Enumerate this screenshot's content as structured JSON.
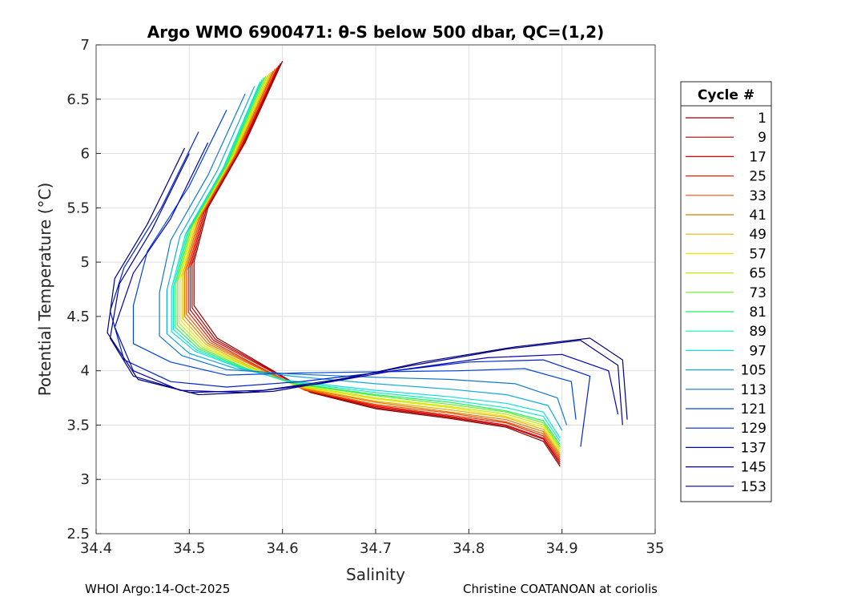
{
  "chart_data": {
    "type": "line",
    "title": "Argo WMO 6900471: θ-S below 500 dbar,  QC=(1,2)",
    "xlabel": "Salinity",
    "ylabel": "Potential Temperature (°C)",
    "xlim": [
      34.4,
      35.0
    ],
    "ylim": [
      2.5,
      7.0
    ],
    "xticks": [
      "34.4",
      "34.5",
      "34.6",
      "34.7",
      "34.8",
      "34.9",
      "35"
    ],
    "yticks": [
      "2.5",
      "3",
      "3.5",
      "4",
      "4.5",
      "5",
      "5.5",
      "6",
      "6.5",
      "7"
    ],
    "grid": true,
    "legend_title": "Cycle #",
    "legend_position": "right",
    "series": [
      {
        "name": "1",
        "color": "#8b0000",
        "values": [
          [
            34.6,
            6.85
          ],
          [
            34.56,
            6.1
          ],
          [
            34.52,
            5.5
          ],
          [
            34.505,
            5.0
          ],
          [
            34.505,
            4.6
          ],
          [
            34.53,
            4.3
          ],
          [
            34.58,
            4.05
          ],
          [
            34.63,
            3.8
          ],
          [
            34.7,
            3.65
          ],
          [
            34.78,
            3.56
          ],
          [
            34.84,
            3.48
          ],
          [
            34.88,
            3.35
          ],
          [
            34.898,
            3.12
          ]
        ]
      },
      {
        "name": "9",
        "color": "#a80000",
        "values": [
          [
            34.598,
            6.83
          ],
          [
            34.558,
            6.08
          ],
          [
            34.518,
            5.48
          ],
          [
            34.503,
            4.98
          ],
          [
            34.503,
            4.58
          ],
          [
            34.528,
            4.29
          ],
          [
            34.578,
            4.05
          ],
          [
            34.628,
            3.81
          ],
          [
            34.7,
            3.66
          ],
          [
            34.78,
            3.57
          ],
          [
            34.84,
            3.49
          ],
          [
            34.88,
            3.37
          ],
          [
            34.898,
            3.14
          ]
        ]
      },
      {
        "name": "17",
        "color": "#dd0000",
        "values": [
          [
            34.596,
            6.81
          ],
          [
            34.556,
            6.06
          ],
          [
            34.516,
            5.46
          ],
          [
            34.501,
            4.96
          ],
          [
            34.501,
            4.56
          ],
          [
            34.526,
            4.28
          ],
          [
            34.576,
            4.05
          ],
          [
            34.626,
            3.82
          ],
          [
            34.7,
            3.67
          ],
          [
            34.78,
            3.58
          ],
          [
            34.84,
            3.5
          ],
          [
            34.88,
            3.38
          ],
          [
            34.898,
            3.16
          ]
        ]
      },
      {
        "name": "25",
        "color": "#e82200",
        "values": [
          [
            34.594,
            6.79
          ],
          [
            34.554,
            6.04
          ],
          [
            34.514,
            5.44
          ],
          [
            34.499,
            4.94
          ],
          [
            34.499,
            4.54
          ],
          [
            34.524,
            4.27
          ],
          [
            34.574,
            4.04
          ],
          [
            34.624,
            3.82
          ],
          [
            34.7,
            3.68
          ],
          [
            34.78,
            3.59
          ],
          [
            34.84,
            3.52
          ],
          [
            34.88,
            3.4
          ],
          [
            34.898,
            3.18
          ]
        ]
      },
      {
        "name": "33",
        "color": "#ee5500",
        "values": [
          [
            34.592,
            6.78
          ],
          [
            34.552,
            6.02
          ],
          [
            34.512,
            5.42
          ],
          [
            34.497,
            4.92
          ],
          [
            34.497,
            4.52
          ],
          [
            34.522,
            4.26
          ],
          [
            34.572,
            4.04
          ],
          [
            34.622,
            3.83
          ],
          [
            34.7,
            3.69
          ],
          [
            34.78,
            3.61
          ],
          [
            34.84,
            3.53
          ],
          [
            34.88,
            3.42
          ],
          [
            34.898,
            3.2
          ]
        ]
      },
      {
        "name": "41",
        "color": "#dd7700",
        "values": [
          [
            34.59,
            6.76
          ],
          [
            34.55,
            6.0
          ],
          [
            34.51,
            5.4
          ],
          [
            34.495,
            4.9
          ],
          [
            34.495,
            4.5
          ],
          [
            34.52,
            4.25
          ],
          [
            34.57,
            4.04
          ],
          [
            34.62,
            3.84
          ],
          [
            34.7,
            3.71
          ],
          [
            34.78,
            3.62
          ],
          [
            34.84,
            3.55
          ],
          [
            34.88,
            3.44
          ],
          [
            34.898,
            3.22
          ]
        ]
      },
      {
        "name": "49",
        "color": "#e8b000",
        "values": [
          [
            34.588,
            6.75
          ],
          [
            34.548,
            5.98
          ],
          [
            34.508,
            5.38
          ],
          [
            34.493,
            4.88
          ],
          [
            34.493,
            4.48
          ],
          [
            34.518,
            4.24
          ],
          [
            34.568,
            4.03
          ],
          [
            34.618,
            3.85
          ],
          [
            34.7,
            3.72
          ],
          [
            34.78,
            3.64
          ],
          [
            34.84,
            3.57
          ],
          [
            34.88,
            3.46
          ],
          [
            34.898,
            3.24
          ]
        ]
      },
      {
        "name": "57",
        "color": "#f0e000",
        "values": [
          [
            34.586,
            6.74
          ],
          [
            34.546,
            5.96
          ],
          [
            34.506,
            5.36
          ],
          [
            34.491,
            4.86
          ],
          [
            34.491,
            4.46
          ],
          [
            34.516,
            4.23
          ],
          [
            34.566,
            4.03
          ],
          [
            34.616,
            3.86
          ],
          [
            34.7,
            3.74
          ],
          [
            34.78,
            3.66
          ],
          [
            34.84,
            3.58
          ],
          [
            34.88,
            3.48
          ],
          [
            34.898,
            3.26
          ]
        ]
      },
      {
        "name": "65",
        "color": "#bbee00",
        "values": [
          [
            34.584,
            6.72
          ],
          [
            34.544,
            5.94
          ],
          [
            34.504,
            5.34
          ],
          [
            34.489,
            4.84
          ],
          [
            34.489,
            4.44
          ],
          [
            34.514,
            4.22
          ],
          [
            34.564,
            4.03
          ],
          [
            34.614,
            3.87
          ],
          [
            34.7,
            3.75
          ],
          [
            34.78,
            3.67
          ],
          [
            34.84,
            3.6
          ],
          [
            34.88,
            3.5
          ],
          [
            34.898,
            3.28
          ]
        ]
      },
      {
        "name": "73",
        "color": "#66ee22",
        "values": [
          [
            34.582,
            6.71
          ],
          [
            34.542,
            5.92
          ],
          [
            34.502,
            5.32
          ],
          [
            34.487,
            4.82
          ],
          [
            34.487,
            4.42
          ],
          [
            34.512,
            4.21
          ],
          [
            34.562,
            4.02
          ],
          [
            34.612,
            3.88
          ],
          [
            34.7,
            3.77
          ],
          [
            34.78,
            3.69
          ],
          [
            34.84,
            3.62
          ],
          [
            34.88,
            3.52
          ],
          [
            34.898,
            3.3
          ]
        ]
      },
      {
        "name": "81",
        "color": "#22ee66",
        "values": [
          [
            34.58,
            6.7
          ],
          [
            34.54,
            5.9
          ],
          [
            34.5,
            5.3
          ],
          [
            34.485,
            4.8
          ],
          [
            34.485,
            4.4
          ],
          [
            34.51,
            4.2
          ],
          [
            34.56,
            4.02
          ],
          [
            34.61,
            3.89
          ],
          [
            34.7,
            3.78
          ],
          [
            34.78,
            3.71
          ],
          [
            34.84,
            3.63
          ],
          [
            34.88,
            3.54
          ],
          [
            34.898,
            3.32
          ]
        ]
      },
      {
        "name": "89",
        "color": "#11eebb",
        "values": [
          [
            34.578,
            6.68
          ],
          [
            34.538,
            5.88
          ],
          [
            34.498,
            5.28
          ],
          [
            34.483,
            4.78
          ],
          [
            34.483,
            4.38
          ],
          [
            34.508,
            4.19
          ],
          [
            34.558,
            4.02
          ],
          [
            34.608,
            3.9
          ],
          [
            34.7,
            3.8
          ],
          [
            34.78,
            3.73
          ],
          [
            34.84,
            3.66
          ],
          [
            34.88,
            3.58
          ],
          [
            34.898,
            3.35
          ]
        ]
      },
      {
        "name": "97",
        "color": "#11dddd",
        "values": [
          [
            34.576,
            6.66
          ],
          [
            34.536,
            5.86
          ],
          [
            34.496,
            5.26
          ],
          [
            34.481,
            4.76
          ],
          [
            34.481,
            4.36
          ],
          [
            34.506,
            4.18
          ],
          [
            34.556,
            4.02
          ],
          [
            34.606,
            3.91
          ],
          [
            34.7,
            3.82
          ],
          [
            34.78,
            3.76
          ],
          [
            34.84,
            3.7
          ],
          [
            34.88,
            3.62
          ],
          [
            34.898,
            3.38
          ]
        ]
      },
      {
        "name": "105",
        "color": "#11aadd",
        "values": [
          [
            34.57,
            6.62
          ],
          [
            34.53,
            5.84
          ],
          [
            34.49,
            5.24
          ],
          [
            34.476,
            4.74
          ],
          [
            34.476,
            4.34
          ],
          [
            34.5,
            4.16
          ],
          [
            34.55,
            4.02
          ],
          [
            34.61,
            3.95
          ],
          [
            34.7,
            3.88
          ],
          [
            34.78,
            3.83
          ],
          [
            34.84,
            3.78
          ],
          [
            34.885,
            3.68
          ],
          [
            34.9,
            3.45
          ]
        ]
      },
      {
        "name": "113",
        "color": "#1177cc",
        "values": [
          [
            34.56,
            6.55
          ],
          [
            34.52,
            5.8
          ],
          [
            34.48,
            5.2
          ],
          [
            34.468,
            4.72
          ],
          [
            34.468,
            4.32
          ],
          [
            34.492,
            4.14
          ],
          [
            34.54,
            4.01
          ],
          [
            34.61,
            3.97
          ],
          [
            34.7,
            3.94
          ],
          [
            34.78,
            3.92
          ],
          [
            34.85,
            3.88
          ],
          [
            34.895,
            3.75
          ],
          [
            34.905,
            3.5
          ]
        ]
      },
      {
        "name": "121",
        "color": "#0044dd",
        "values": [
          [
            34.54,
            6.4
          ],
          [
            34.5,
            5.7
          ],
          [
            34.455,
            5.1
          ],
          [
            34.44,
            4.6
          ],
          [
            34.44,
            4.25
          ],
          [
            34.48,
            4.08
          ],
          [
            34.54,
            3.96
          ],
          [
            34.62,
            3.98
          ],
          [
            34.7,
            3.99
          ],
          [
            34.79,
            4.0
          ],
          [
            34.86,
            4.02
          ],
          [
            34.91,
            3.9
          ],
          [
            34.915,
            3.55
          ]
        ]
      },
      {
        "name": "129",
        "color": "#0022cc",
        "values": [
          [
            34.51,
            6.2
          ],
          [
            34.47,
            5.5
          ],
          [
            34.43,
            4.95
          ],
          [
            34.415,
            4.55
          ],
          [
            34.43,
            4.1
          ],
          [
            34.48,
            3.9
          ],
          [
            34.54,
            3.85
          ],
          [
            34.62,
            3.9
          ],
          [
            34.7,
            3.98
          ],
          [
            34.8,
            4.08
          ],
          [
            34.88,
            4.1
          ],
          [
            34.93,
            3.95
          ],
          [
            34.92,
            3.3
          ]
        ]
      },
      {
        "name": "137",
        "color": "#0000bb",
        "values": [
          [
            34.52,
            6.1
          ],
          [
            34.48,
            5.4
          ],
          [
            34.44,
            4.9
          ],
          [
            34.42,
            4.4
          ],
          [
            34.44,
            4.0
          ],
          [
            34.49,
            3.82
          ],
          [
            34.56,
            3.8
          ],
          [
            34.64,
            3.88
          ],
          [
            34.72,
            4.0
          ],
          [
            34.82,
            4.12
          ],
          [
            34.9,
            4.15
          ],
          [
            34.95,
            4.0
          ],
          [
            34.96,
            3.6
          ]
        ]
      },
      {
        "name": "145",
        "color": "#00008b",
        "values": [
          [
            34.5,
            6.0
          ],
          [
            34.46,
            5.3
          ],
          [
            34.425,
            4.8
          ],
          [
            34.415,
            4.3
          ],
          [
            34.44,
            3.95
          ],
          [
            34.5,
            3.8
          ],
          [
            34.58,
            3.82
          ],
          [
            34.66,
            3.92
          ],
          [
            34.74,
            4.05
          ],
          [
            34.84,
            4.2
          ],
          [
            34.92,
            4.28
          ],
          [
            34.96,
            4.05
          ],
          [
            34.965,
            3.5
          ]
        ]
      },
      {
        "name": "153",
        "color": "#00007a",
        "values": [
          [
            34.495,
            6.05
          ],
          [
            34.455,
            5.35
          ],
          [
            34.42,
            4.85
          ],
          [
            34.412,
            4.35
          ],
          [
            34.445,
            3.92
          ],
          [
            34.51,
            3.78
          ],
          [
            34.59,
            3.81
          ],
          [
            34.67,
            3.93
          ],
          [
            34.75,
            4.08
          ],
          [
            34.85,
            4.22
          ],
          [
            34.93,
            4.3
          ],
          [
            34.965,
            4.1
          ],
          [
            34.97,
            3.55
          ]
        ]
      }
    ]
  },
  "footer": {
    "left": "WHOI Argo:14-Oct-2025",
    "right": "Christine COATANOAN at coriolis"
  }
}
